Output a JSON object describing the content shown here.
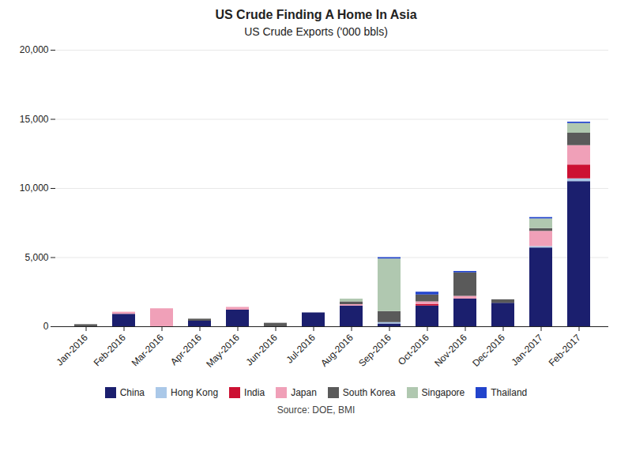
{
  "chart_data": {
    "type": "bar",
    "stacked": true,
    "title": "US Crude Finding A Home In Asia",
    "subtitle": "US Crude Exports ('000 bbls)",
    "source": "Source: DOE, BMI",
    "categories": [
      "Jan-2016",
      "Feb-2016",
      "Mar-2016",
      "Apr-2016",
      "May-2016",
      "Jun-2016",
      "Jul-2016",
      "Aug-2016",
      "Sep-2016",
      "Oct-2016",
      "Nov-2016",
      "Dec-2016",
      "Jan-2017",
      "Feb-2017"
    ],
    "series": [
      {
        "name": "China",
        "color": "#1b1f6e",
        "values": [
          0,
          900,
          0,
          400,
          1200,
          0,
          1000,
          1500,
          200,
          1500,
          2000,
          1700,
          5700,
          10500
        ]
      },
      {
        "name": "Hong Kong",
        "color": "#aac8e8",
        "values": [
          0,
          0,
          0,
          0,
          0,
          0,
          0,
          0,
          100,
          0,
          0,
          0,
          100,
          200
        ]
      },
      {
        "name": "India",
        "color": "#cc1133",
        "values": [
          0,
          0,
          0,
          0,
          0,
          0,
          0,
          0,
          0,
          100,
          0,
          0,
          0,
          1000
        ]
      },
      {
        "name": "Japan",
        "color": "#f0a0b8",
        "values": [
          0,
          150,
          1300,
          0,
          200,
          0,
          0,
          100,
          0,
          200,
          200,
          0,
          1100,
          1400
        ]
      },
      {
        "name": "South Korea",
        "color": "#5a5a5a",
        "values": [
          150,
          0,
          0,
          150,
          0,
          250,
          0,
          200,
          800,
          500,
          1700,
          250,
          200,
          900
        ]
      },
      {
        "name": "Singapore",
        "color": "#b0c8b0",
        "values": [
          0,
          0,
          0,
          0,
          0,
          0,
          0,
          200,
          3800,
          0,
          0,
          0,
          700,
          700
        ]
      },
      {
        "name": "Thailand",
        "color": "#2244cc",
        "values": [
          0,
          0,
          0,
          0,
          0,
          0,
          0,
          0,
          100,
          200,
          100,
          0,
          100,
          100
        ]
      }
    ],
    "ylim": [
      0,
      20000
    ],
    "yticks": [
      0,
      {
        "value": 5000,
        "label": "5,000"
      },
      {
        "value": 10000,
        "label": "10,000"
      },
      {
        "value": 15000,
        "label": "15,000"
      },
      {
        "value": 20000,
        "label": "20,000"
      }
    ],
    "grid": true,
    "legend": "bottom"
  }
}
